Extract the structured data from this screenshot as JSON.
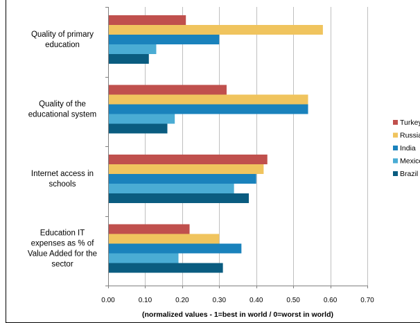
{
  "chart_data": {
    "type": "bar",
    "orientation": "horizontal",
    "categories": [
      "Quality of primary education",
      "Quality of the educational system",
      "Internet access in schools",
      "Education IT expenses as % of Value Added for the sector"
    ],
    "category_label_lines": [
      [
        "Quality of primary",
        "education"
      ],
      [
        "Quality of the",
        "educational system"
      ],
      [
        "Internet access in",
        "schools"
      ],
      [
        "Education IT",
        "expenses as % of",
        "Value Added for the",
        "sector"
      ]
    ],
    "series": [
      {
        "name": "Turkey",
        "color": "#c0504d",
        "values": [
          0.21,
          0.32,
          0.43,
          0.22
        ]
      },
      {
        "name": "Russia",
        "color": "#f0c45e",
        "values": [
          0.58,
          0.54,
          0.42,
          0.3
        ]
      },
      {
        "name": "India",
        "color": "#1a82bc",
        "values": [
          0.3,
          0.54,
          0.4,
          0.36
        ]
      },
      {
        "name": "Mexico",
        "color": "#4aacd4",
        "values": [
          0.13,
          0.18,
          0.34,
          0.19
        ]
      },
      {
        "name": "Brazil",
        "color": "#0a5c80",
        "values": [
          0.11,
          0.16,
          0.38,
          0.31
        ]
      }
    ],
    "legend_labels": [
      "Turkey",
      "Russia",
      "India",
      "Mexico",
      "Brazil"
    ],
    "xlim": [
      0,
      0.7
    ],
    "xticks": [
      "0.00",
      "0.10",
      "0.20",
      "0.30",
      "0.40",
      "0.50",
      "0.60",
      "0.70"
    ],
    "xlabel": "(normalized values - 1=best in world / 0=worst in world)",
    "ylabel": "",
    "title": "",
    "grid": "vertical",
    "legend_position": "right"
  }
}
